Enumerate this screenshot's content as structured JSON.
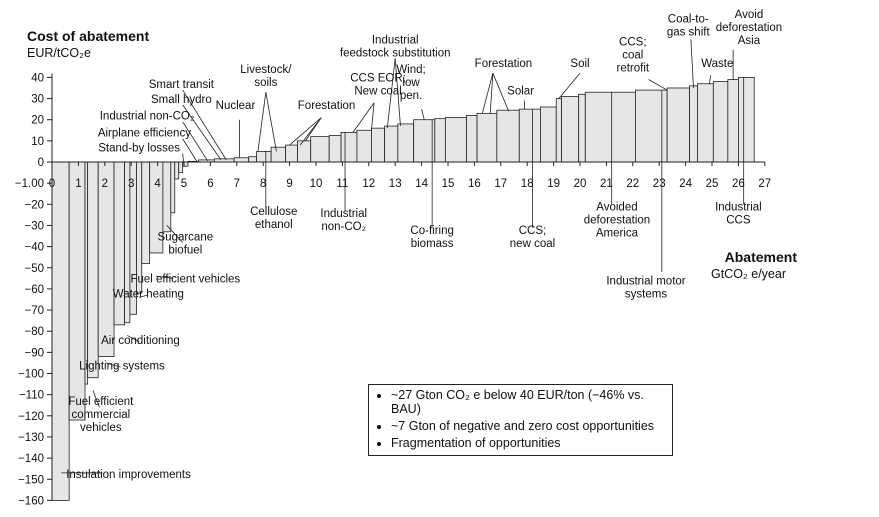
{
  "chart_data": {
    "type": "bar",
    "ylabel_title": "Cost of abatement",
    "ylabel_units": "EUR/tCO₂e",
    "xlabel_title": "Abatement",
    "xlabel_units": "GtCO₂ e/year",
    "ylim": [
      -160,
      40
    ],
    "xlim": [
      0,
      27
    ],
    "y_ticks": [
      "40",
      "30",
      "20",
      "10",
      "0",
      "−1.00",
      "−20",
      "−30",
      "−40",
      "−50",
      "−60",
      "−70",
      "−80",
      "−90",
      "−100",
      "−110",
      "−120",
      "−130",
      "−140",
      "−150",
      "−160"
    ],
    "x_ticks": [
      "0",
      "1",
      "2",
      "3",
      "4",
      "5",
      "6",
      "7",
      "8",
      "9",
      "10",
      "11",
      "12",
      "13",
      "14",
      "15",
      "16",
      "17",
      "18",
      "19",
      "20",
      "21",
      "22",
      "23",
      "24",
      "25",
      "26",
      "27"
    ],
    "bars": [
      {
        "x0": 0.0,
        "x1": 0.65,
        "cost": -160
      },
      {
        "x0": 0.65,
        "x1": 1.25,
        "cost": -122
      },
      {
        "x0": 1.25,
        "x1": 1.35,
        "cost": -105
      },
      {
        "x0": 1.35,
        "x1": 1.75,
        "cost": -102
      },
      {
        "x0": 1.75,
        "x1": 2.35,
        "cost": -92
      },
      {
        "x0": 2.35,
        "x1": 2.75,
        "cost": -77
      },
      {
        "x0": 2.75,
        "x1": 2.95,
        "cost": -76
      },
      {
        "x0": 2.95,
        "x1": 3.2,
        "cost": -72
      },
      {
        "x0": 3.2,
        "x1": 3.4,
        "cost": -62
      },
      {
        "x0": 3.4,
        "x1": 3.7,
        "cost": -48
      },
      {
        "x0": 3.7,
        "x1": 4.2,
        "cost": -43
      },
      {
        "x0": 4.2,
        "x1": 4.5,
        "cost": -33
      },
      {
        "x0": 4.5,
        "x1": 4.65,
        "cost": -24
      },
      {
        "x0": 4.65,
        "x1": 4.8,
        "cost": -8
      },
      {
        "x0": 4.8,
        "x1": 4.95,
        "cost": -5
      },
      {
        "x0": 4.95,
        "x1": 5.15,
        "cost": -2
      },
      {
        "x0": 5.15,
        "x1": 5.55,
        "cost": 0.3
      },
      {
        "x0": 5.55,
        "x1": 6.15,
        "cost": 1
      },
      {
        "x0": 6.15,
        "x1": 6.9,
        "cost": 1.5
      },
      {
        "x0": 6.9,
        "x1": 7.45,
        "cost": 2
      },
      {
        "x0": 7.45,
        "x1": 7.75,
        "cost": 2.5
      },
      {
        "x0": 7.75,
        "x1": 8.3,
        "cost": 5
      },
      {
        "x0": 8.3,
        "x1": 8.85,
        "cost": 7
      },
      {
        "x0": 8.85,
        "x1": 9.3,
        "cost": 8
      },
      {
        "x0": 9.3,
        "x1": 9.8,
        "cost": 10
      },
      {
        "x0": 9.8,
        "x1": 10.5,
        "cost": 12
      },
      {
        "x0": 10.5,
        "x1": 10.95,
        "cost": 12.5
      },
      {
        "x0": 10.95,
        "x1": 11.55,
        "cost": 14
      },
      {
        "x0": 11.55,
        "x1": 12.1,
        "cost": 15
      },
      {
        "x0": 12.1,
        "x1": 12.6,
        "cost": 16
      },
      {
        "x0": 12.6,
        "x1": 13.1,
        "cost": 17
      },
      {
        "x0": 13.1,
        "x1": 13.7,
        "cost": 18
      },
      {
        "x0": 13.7,
        "x1": 14.5,
        "cost": 20
      },
      {
        "x0": 14.5,
        "x1": 14.9,
        "cost": 20.5
      },
      {
        "x0": 14.9,
        "x1": 15.7,
        "cost": 21
      },
      {
        "x0": 15.7,
        "x1": 16.1,
        "cost": 22
      },
      {
        "x0": 16.1,
        "x1": 16.85,
        "cost": 23
      },
      {
        "x0": 16.85,
        "x1": 17.7,
        "cost": 24.5
      },
      {
        "x0": 17.7,
        "x1": 18.5,
        "cost": 25
      },
      {
        "x0": 18.5,
        "x1": 19.1,
        "cost": 26
      },
      {
        "x0": 19.1,
        "x1": 19.3,
        "cost": 30
      },
      {
        "x0": 19.3,
        "x1": 19.95,
        "cost": 31
      },
      {
        "x0": 19.95,
        "x1": 20.2,
        "cost": 32
      },
      {
        "x0": 20.2,
        "x1": 22.1,
        "cost": 33
      },
      {
        "x0": 22.1,
        "x1": 23.3,
        "cost": 34
      },
      {
        "x0": 23.3,
        "x1": 24.15,
        "cost": 35
      },
      {
        "x0": 24.15,
        "x1": 24.45,
        "cost": 36
      },
      {
        "x0": 24.45,
        "x1": 25.05,
        "cost": 37
      },
      {
        "x0": 25.05,
        "x1": 25.6,
        "cost": 38
      },
      {
        "x0": 25.6,
        "x1": 26.0,
        "cost": 39
      },
      {
        "x0": 26.0,
        "x1": 26.6,
        "cost": 40
      }
    ],
    "annotations": [
      {
        "text": "Insulation improvements",
        "lines": [
          "Insulation improvements"
        ],
        "tx": 2.9,
        "ty": -149.5,
        "pts": [
          [
            0.35,
            -147
          ],
          [
            1.05,
            -147
          ],
          [
            1.55,
            -147
          ]
        ],
        "anchor": [
          1.9,
          -147
        ]
      },
      {
        "text": "Fuel efficient commercial vehicles",
        "lines": [
          "Fuel efficient",
          "commercial",
          "vehicles"
        ],
        "tx": 1.85,
        "ty": -115,
        "pts": [
          [
            1.55,
            -108
          ]
        ],
        "anchor": [
          1.8,
          -116
        ]
      },
      {
        "text": "Lighting systems",
        "lines": [
          "Lighting systems"
        ],
        "tx": 2.65,
        "ty": -98,
        "pts": [
          [
            2.05,
            -95
          ]
        ],
        "anchor": [
          2.6,
          -97
        ]
      },
      {
        "text": "Air conditioning",
        "lines": [
          "Air conditioning"
        ],
        "tx": 3.35,
        "ty": -86,
        "pts": [
          [
            2.85,
            -82
          ]
        ],
        "anchor": [
          3.3,
          -85
        ]
      },
      {
        "text": "Water heating",
        "lines": [
          "Water heating"
        ],
        "tx": 3.65,
        "ty": -64,
        "pts": [
          [
            3.3,
            -64
          ]
        ],
        "anchor": [
          3.6,
          -63
        ]
      },
      {
        "text": "Fuel efficient vehicles",
        "lines": [
          "Fuel efficient vehicles"
        ],
        "tx": 5.05,
        "ty": -57,
        "pts": [
          [
            3.95,
            -54
          ]
        ],
        "anchor": [
          4.6,
          -55
        ]
      },
      {
        "text": "Sugarcane biofuel",
        "lines": [
          "Sugarcane",
          "biofuel"
        ],
        "tx": 5.05,
        "ty": -37,
        "pts": [
          [
            4.35,
            -30
          ]
        ],
        "anchor": [
          4.95,
          -38
        ]
      },
      {
        "text": "Stand-by losses",
        "lines": [
          "Stand-by losses"
        ],
        "tx": 3.3,
        "ty": 5,
        "pts": [
          [
            5.0,
            -2
          ]
        ],
        "anchor": [
          4.95,
          4
        ]
      },
      {
        "text": "Airplane efficiency",
        "lines": [
          "Airplane efficiency"
        ],
        "tx": 3.5,
        "ty": 12,
        "pts": [
          [
            5.5,
            0
          ]
        ],
        "anchor": [
          4.95,
          11
        ]
      },
      {
        "text": "Industrial non-CO₂",
        "lines": [
          "Industrial non-CO₂"
        ],
        "tx": 3.6,
        "ty": 20,
        "pts": [
          [
            5.9,
            0.5
          ]
        ],
        "anchor": [
          4.95,
          19
        ]
      },
      {
        "text": "Small hydro",
        "lines": [
          "Small hydro"
        ],
        "tx": 4.9,
        "ty": 28,
        "pts": [
          [
            6.4,
            1
          ]
        ],
        "anchor": [
          4.95,
          27
        ]
      },
      {
        "text": "Smart transit",
        "lines": [
          "Smart transit"
        ],
        "tx": 4.9,
        "ty": 35,
        "pts": [
          [
            6.6,
            1
          ]
        ],
        "anchor": [
          4.95,
          34
        ]
      },
      {
        "text": "Nuclear",
        "lines": [
          "Nuclear"
        ],
        "tx": 6.95,
        "ty": 25,
        "pts": [
          [
            7.1,
            2
          ]
        ],
        "anchor": [
          7.1,
          20
        ]
      },
      {
        "text": "Livestock/ soils",
        "lines": [
          "Livestock/",
          "soils"
        ],
        "tx": 8.1,
        "ty": 42,
        "pts": [
          [
            7.8,
            5
          ],
          [
            8.5,
            5
          ]
        ],
        "anchor": [
          8.1,
          33
        ]
      },
      {
        "text": "Forestation",
        "lines": [
          "Forestation"
        ],
        "tx": 10.4,
        "ty": 25,
        "pts": [
          [
            9.0,
            8
          ],
          [
            9.4,
            8
          ],
          [
            9.6,
            10
          ]
        ],
        "anchor": [
          10.2,
          21
        ]
      },
      {
        "text": "CCS EOR; New coal",
        "lines": [
          "CCS EOR;",
          "New coal"
        ],
        "tx": 12.35,
        "ty": 38,
        "pts": [
          [
            11.4,
            14
          ],
          [
            12.1,
            15
          ]
        ],
        "anchor": [
          12.2,
          28
        ]
      },
      {
        "text": "Industrial feedstock substitution",
        "lines": [
          "Industrial",
          "feedstock substitution"
        ],
        "tx": 13.0,
        "ty": 56,
        "pts": [
          [
            12.7,
            16
          ],
          [
            13.2,
            17
          ]
        ],
        "anchor": [
          13.0,
          49
        ]
      },
      {
        "text": "Wind; low pen.",
        "lines": [
          "Wind;",
          "low",
          "pen."
        ],
        "tx": 13.6,
        "ty": 42,
        "pts": [
          [
            14.1,
            20
          ]
        ],
        "anchor": [
          14.0,
          25
        ]
      },
      {
        "text": "Forestation",
        "lines": [
          "Forestation"
        ],
        "tx": 17.1,
        "ty": 45,
        "pts": [
          [
            16.3,
            23
          ],
          [
            16.6,
            23
          ],
          [
            17.3,
            24
          ]
        ],
        "anchor": [
          16.7,
          42
        ]
      },
      {
        "text": "Solar",
        "lines": [
          "Solar"
        ],
        "tx": 17.75,
        "ty": 32,
        "pts": [
          [
            17.9,
            25
          ]
        ],
        "anchor": [
          17.9,
          29
        ]
      },
      {
        "text": "Soil",
        "lines": [
          "Soil"
        ],
        "tx": 20.0,
        "ty": 45,
        "pts": [
          [
            19.2,
            30
          ]
        ],
        "anchor": [
          20.0,
          42
        ]
      },
      {
        "text": "CCS; coal retrofit",
        "lines": [
          "CCS;",
          "coal",
          "retrofit"
        ],
        "tx": 22.0,
        "ty": 55,
        "pts": [
          [
            23.3,
            34
          ]
        ],
        "anchor": [
          22.6,
          39
        ]
      },
      {
        "text": "Coal-to-gas shift",
        "lines": [
          "Coal-to-",
          "gas shift"
        ],
        "tx": 24.1,
        "ty": 66,
        "pts": [
          [
            24.3,
            35
          ]
        ],
        "anchor": [
          24.2,
          58
        ]
      },
      {
        "text": "Waste",
        "lines": [
          "Waste"
        ],
        "tx": 25.2,
        "ty": 45,
        "pts": [
          [
            24.9,
            37
          ]
        ],
        "anchor": [
          24.95,
          41
        ]
      },
      {
        "text": "Avoid deforestation Asia",
        "lines": [
          "Avoid",
          "deforestation",
          "Asia"
        ],
        "tx": 26.4,
        "ty": 68,
        "pts": [
          [
            25.8,
            39
          ]
        ],
        "anchor": [
          25.8,
          53
        ]
      },
      {
        "text": "Cellulose ethanol",
        "lines": [
          "Cellulose",
          "ethanol"
        ],
        "tx": 8.4,
        "ty": -25,
        "pts": [
          [
            8.1,
            5
          ]
        ],
        "anchor": [
          8.1,
          -22
        ]
      },
      {
        "text": "Industrial non-CO₂",
        "lines": [
          "Industrial",
          "non-CO₂"
        ],
        "tx": 11.05,
        "ty": -26,
        "pts": [
          [
            11.1,
            14
          ]
        ],
        "anchor": [
          11.1,
          -23
        ]
      },
      {
        "text": "Co-firing biomass",
        "lines": [
          "Co-firing",
          "biomass"
        ],
        "tx": 14.4,
        "ty": -34,
        "pts": [
          [
            14.4,
            20
          ]
        ],
        "anchor": [
          14.4,
          -31
        ]
      },
      {
        "text": "CCS; new coal",
        "lines": [
          "CCS;",
          "new coal"
        ],
        "tx": 18.2,
        "ty": -34,
        "pts": [
          [
            18.2,
            25
          ]
        ],
        "anchor": [
          18.2,
          -31
        ]
      },
      {
        "text": "Avoided deforestation America",
        "lines": [
          "Avoided",
          "deforestation",
          "America"
        ],
        "tx": 21.4,
        "ty": -23,
        "pts": [
          [
            21.2,
            33
          ]
        ],
        "anchor": [
          21.2,
          -20
        ]
      },
      {
        "text": "Industrial motor systems",
        "lines": [
          "Industrial motor",
          "systems"
        ],
        "tx": 22.5,
        "ty": -58,
        "pts": [
          [
            23.1,
            34
          ]
        ],
        "anchor": [
          23.1,
          -52
        ]
      },
      {
        "text": "Industrial CCS",
        "lines": [
          "Industrial",
          "CCS"
        ],
        "tx": 26.0,
        "ty": -23,
        "pts": [
          [
            26.2,
            40
          ]
        ],
        "anchor": [
          26.2,
          -20
        ]
      }
    ]
  },
  "legend": {
    "items": [
      "~27 Gton CO₂ e below 40 EUR/ton (−46% vs. BAU)",
      "~7 Gton of negative and zero cost opportunities",
      "Fragmentation of opportunities"
    ]
  }
}
